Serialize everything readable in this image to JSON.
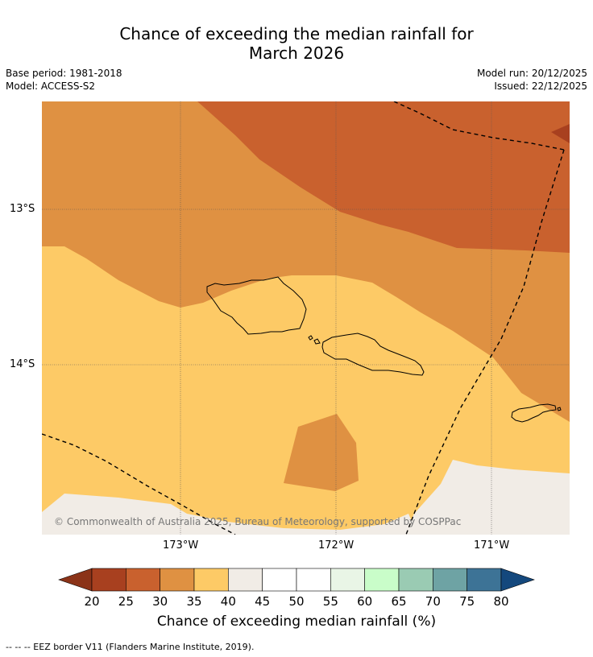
{
  "title": {
    "line1": "Chance of exceeding the median rainfall for",
    "line2": "March 2026"
  },
  "meta": {
    "base_period": "Base period: 1981-2018",
    "model": "Model: ACCESS-S2",
    "model_run": "Model run: 20/12/2025",
    "issued": "Issued: 22/12/2025"
  },
  "map": {
    "copyright": "© Commonwealth of Australia 2025, Bureau of Meteorology, supported by COSPPac",
    "lat_labels": [
      "13°S",
      "14°S"
    ],
    "lon_labels": [
      "173°W",
      "172°W",
      "171°W"
    ]
  },
  "colorbar": {
    "ticks": [
      "20",
      "25",
      "30",
      "35",
      "40",
      "45",
      "50",
      "55",
      "60",
      "65",
      "70",
      "75",
      "80"
    ],
    "colors": [
      "#a8401f",
      "#c9612e",
      "#df9142",
      "#fdca66",
      "#f1ece6",
      "#ffffff",
      "#ffffff",
      "#e9f5e6",
      "#c9fdc9",
      "#9acbb3",
      "#6ea3a4",
      "#3d7396"
    ],
    "under_color": "#8b3318",
    "over_color": "#14487d",
    "label": "Chance of exceeding median rainfall (%)"
  },
  "footnote": "--  --  -- EEZ border V11 (Flanders Marine Institute, 2019)."
}
